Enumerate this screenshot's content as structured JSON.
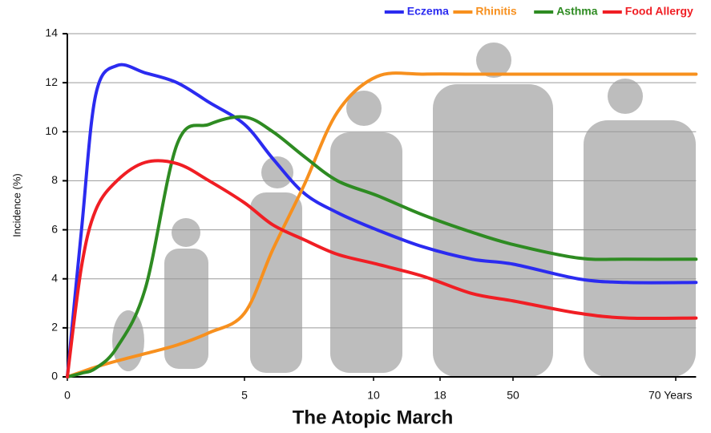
{
  "chart_data": {
    "type": "line",
    "title": "The Atopic March",
    "y_label": "Incidence (%)",
    "x": [
      0,
      0.4,
      0.8,
      1.4,
      2.2,
      3.1,
      4,
      5,
      6.1,
      7.3,
      8.6,
      10.4,
      16,
      32,
      50,
      58,
      64,
      72.5
    ],
    "series": [
      {
        "name": "Eczema",
        "color": "#2b2bf0",
        "values": [
          0,
          6,
          11.5,
          12.7,
          12.4,
          12.0,
          11.2,
          10.3,
          8.9,
          7.5,
          6.7,
          6.0,
          5.3,
          4.8,
          4.6,
          4.0,
          3.85,
          3.85
        ]
      },
      {
        "name": "Rhinitis",
        "color": "#f7901e",
        "values": [
          0,
          0.2,
          0.4,
          0.65,
          0.95,
          1.3,
          1.8,
          2.6,
          5.2,
          7.8,
          10.8,
          12.25,
          12.35,
          12.35,
          12.35,
          12.35,
          12.35,
          12.35
        ]
      },
      {
        "name": "Asthma",
        "color": "#2e8b22",
        "values": [
          0,
          0.15,
          0.35,
          1.2,
          3.6,
          9.5,
          10.3,
          10.6,
          10.0,
          9.0,
          8.0,
          7.4,
          6.6,
          5.9,
          5.4,
          4.85,
          4.8,
          4.8
        ]
      },
      {
        "name": "Food Allergy",
        "color": "#f01e24",
        "values": [
          0,
          4.5,
          6.8,
          8.0,
          8.75,
          8.7,
          8.0,
          7.1,
          6.2,
          5.6,
          5.0,
          4.6,
          4.1,
          3.4,
          3.1,
          2.6,
          2.4,
          2.4
        ]
      }
    ],
    "ylim": [
      0,
      14
    ],
    "yticks": [
      0,
      2,
      4,
      6,
      8,
      10,
      12,
      14
    ],
    "xlim": [
      0,
      72.5
    ],
    "xticks": [
      0,
      5,
      10,
      18,
      50,
      {
        "value": 70,
        "label": "70 Years"
      }
    ],
    "grid": true
  }
}
